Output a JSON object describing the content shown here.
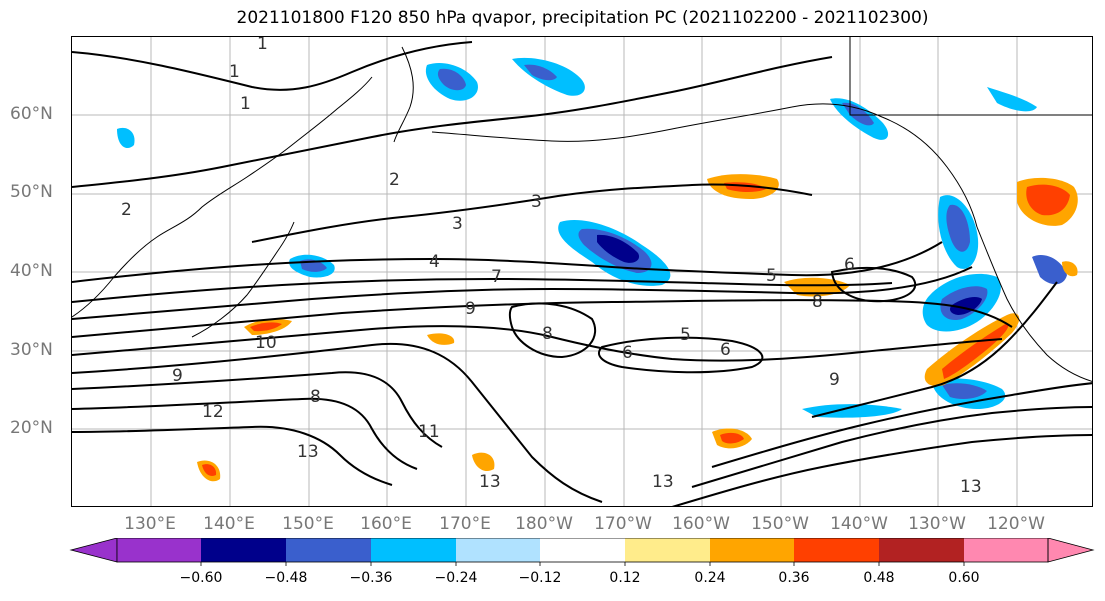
{
  "title": "2021101800 F120 850 hPa qvapor, precipitation PC (2021102200 - 2021102300)",
  "map": {
    "lat_labels": [
      "60°N",
      "50°N",
      "40°N",
      "30°N",
      "20°N"
    ],
    "lon_labels": [
      "130°E",
      "140°E",
      "150°E",
      "160°E",
      "170°E",
      "180°W",
      "170°W",
      "160°W",
      "150°W",
      "140°W",
      "130°W",
      "120°W"
    ],
    "contour_labels": [
      "1",
      "1",
      "1",
      "2",
      "2",
      "3",
      "3",
      "4",
      "5",
      "5",
      "6",
      "6",
      "6",
      "7",
      "8",
      "8",
      "8",
      "9",
      "9",
      "9",
      "10",
      "11",
      "12",
      "13",
      "13",
      "13",
      "13"
    ]
  },
  "colorbar": {
    "ticks": [
      "−0.60",
      "−0.48",
      "−0.36",
      "−0.24",
      "−0.12",
      "0.12",
      "0.24",
      "0.36",
      "0.48",
      "0.60"
    ],
    "colors": [
      "#9932cc",
      "#00008b",
      "#3a5fcd",
      "#00bfff",
      "#b0e2ff",
      "#ffffff",
      "#ffec8b",
      "#ffa500",
      "#ff4000",
      "#b22222",
      "#ff88b0"
    ]
  }
}
